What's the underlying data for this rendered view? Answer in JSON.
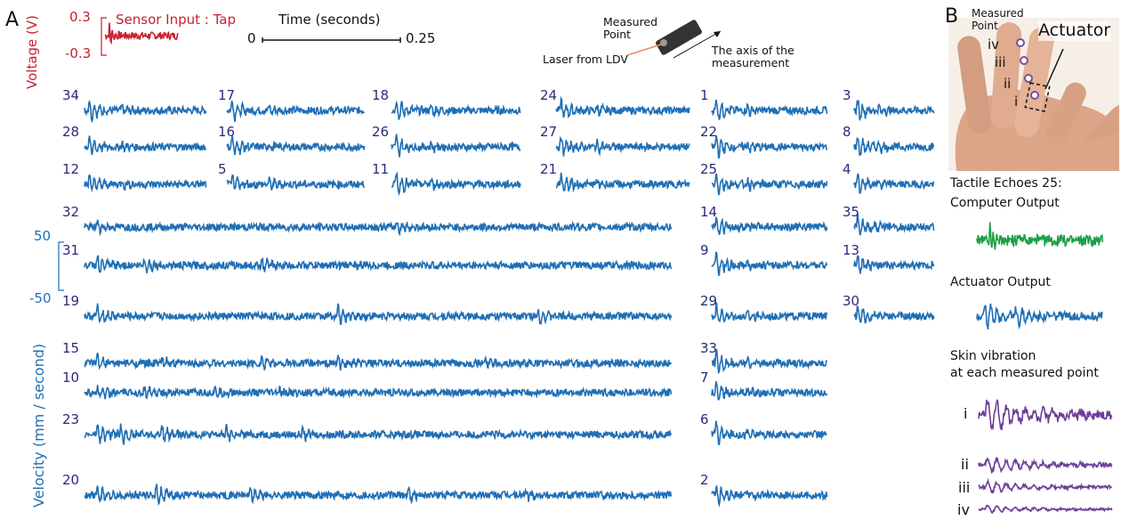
{
  "panel_a": {
    "label": "A",
    "voltage_axis": {
      "title": "Voltage (V)",
      "top": "0.3",
      "bottom": "-0.3"
    },
    "sensor_label": "Sensor Input : Tap",
    "time_axis": {
      "title": "Time (seconds)",
      "start": "0",
      "end": "0.25"
    },
    "ldv": {
      "measured_point": "Measured Point",
      "laser": "Laser from LDV",
      "axis": "The axis of the measurement"
    },
    "velocity_axis": {
      "title": "Velocity (mm / second)",
      "top": "50",
      "bottom": "-50"
    },
    "traces": [
      "34",
      "17",
      "18",
      "24",
      "1",
      "3",
      "28",
      "16",
      "26",
      "27",
      "22",
      "8",
      "12",
      "5",
      "11",
      "21",
      "25",
      "4",
      "32",
      "31",
      "19",
      "15",
      "10",
      "23",
      "20",
      "14",
      "9",
      "29",
      "33",
      "7",
      "6",
      "2",
      "35",
      "13",
      "30"
    ]
  },
  "panel_b": {
    "label": "B",
    "measured_point": "Measured Point",
    "actuator": "Actuator",
    "finger_points": [
      "iv",
      "iii",
      "ii",
      "i"
    ],
    "title_line1": "Tactile Echoes 25:",
    "title_line2": "Computer Output",
    "actuator_output": "Actuator Output",
    "skin_line1": "Skin vibration",
    "skin_line2": "at each measured point",
    "trace_labels": [
      "i",
      "ii",
      "iii",
      "iv"
    ]
  }
}
